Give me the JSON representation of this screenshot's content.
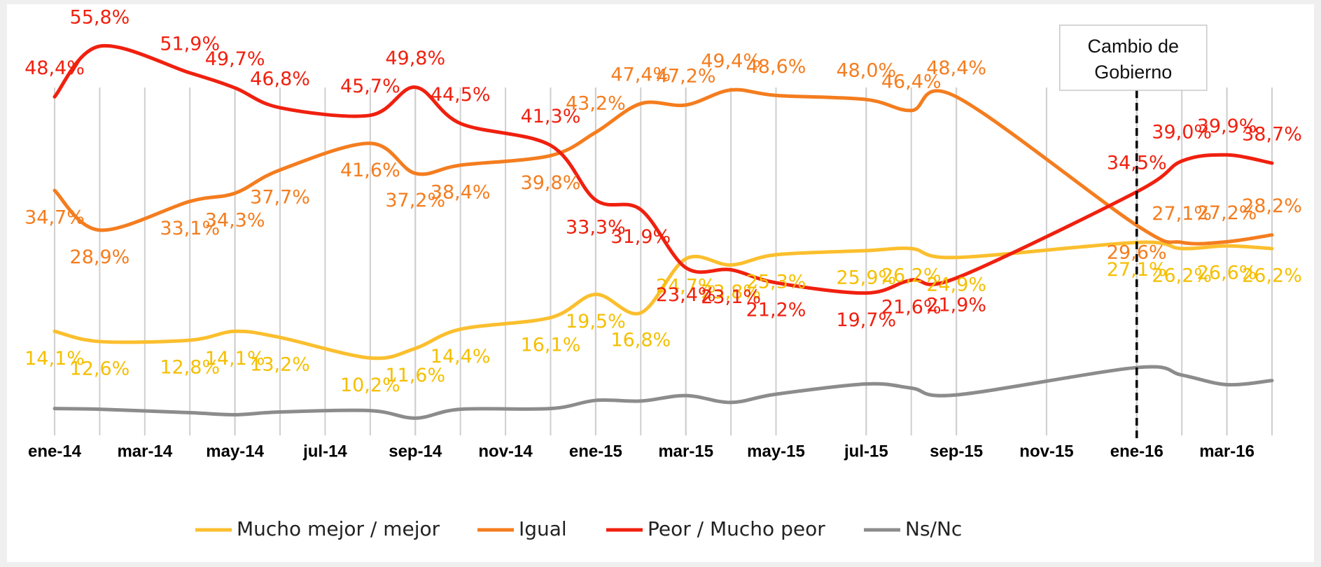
{
  "chart_data": {
    "type": "line",
    "xlim": [
      0,
      27
    ],
    "xticks": [
      {
        "value": 0,
        "label": "ene-14"
      },
      {
        "value": 2,
        "label": "mar-14"
      },
      {
        "value": 4,
        "label": "may-14"
      },
      {
        "value": 6,
        "label": "jul-14"
      },
      {
        "value": 8,
        "label": "sep-14"
      },
      {
        "value": 10,
        "label": "nov-14"
      },
      {
        "value": 12,
        "label": "ene-15"
      },
      {
        "value": 14,
        "label": "mar-15"
      },
      {
        "value": 16,
        "label": "may-15"
      },
      {
        "value": 18,
        "label": "jul-15"
      },
      {
        "value": 20,
        "label": "sep-15"
      },
      {
        "value": 22,
        "label": "nov-15"
      },
      {
        "value": 24,
        "label": "ene-16"
      },
      {
        "value": 26,
        "label": "mar-16"
      }
    ],
    "x": [
      0,
      1,
      3,
      4,
      5,
      7,
      8,
      9,
      11,
      12,
      13,
      14,
      15,
      16,
      18,
      19,
      20,
      24,
      25,
      26,
      27
    ],
    "ylim": [
      0,
      60
    ],
    "grid": true,
    "series": [
      {
        "name": "Mucho mejor / mejor",
        "color": "#fbbf2e",
        "label_color": "#f5bf00",
        "values": [
          14.1,
          12.6,
          12.8,
          14.1,
          13.2,
          10.2,
          11.6,
          14.4,
          16.1,
          19.5,
          16.8,
          24.7,
          23.8,
          25.3,
          25.9,
          26.2,
          24.9,
          27.1,
          26.2,
          26.6,
          26.2
        ],
        "value_labels": [
          "14,1%",
          "12,6%",
          "12,8%",
          "14,1%",
          "13,2%",
          "10,2%",
          "11,6%",
          "14,4%",
          "16,1%",
          "19,5%",
          "16,8%",
          "24,7%",
          "23,8%",
          "25,3%",
          "25,9%",
          "26,2%",
          "24,9%",
          "27,1%",
          "26,2%",
          "26,6%",
          "26,2%"
        ]
      },
      {
        "name": "Igual",
        "color": "#f47d1f",
        "label_color": "#f47d1f",
        "values": [
          34.7,
          28.9,
          33.1,
          34.3,
          37.7,
          41.6,
          37.2,
          38.4,
          39.8,
          43.2,
          47.4,
          47.2,
          49.4,
          48.6,
          48.0,
          46.4,
          48.4,
          29.6,
          27.1,
          27.2,
          28.2
        ],
        "value_labels": [
          "34,7%",
          "28,9%",
          "33,1%",
          "34,3%",
          "37,7%",
          "41,6%",
          "37,2%",
          "38,4%",
          "39,8%",
          "43,2%",
          "47,4%",
          "47,2%",
          "49,4%",
          "48,6%",
          "48,0%",
          "46,4%",
          "48,4%",
          "29,6%",
          "27,1%",
          "27,2%",
          "28,2%"
        ]
      },
      {
        "name": "Peor / Mucho peor",
        "color": "#f0200f",
        "label_color": "#f0200f",
        "values": [
          48.4,
          55.8,
          51.9,
          49.7,
          46.8,
          45.7,
          49.8,
          44.5,
          41.3,
          33.3,
          31.9,
          23.4,
          23.1,
          21.2,
          19.7,
          21.6,
          21.9,
          34.5,
          39.0,
          39.9,
          38.7
        ],
        "value_labels": [
          "48,4%",
          "55,8%",
          "51,9%",
          "49,7%",
          "46,8%",
          "45,7%",
          "49,8%",
          "44,5%",
          "41,3%",
          "33,3%",
          "31,9%",
          "23,4%",
          "23,1%",
          "21,2%",
          "19,7%",
          "21,6%",
          "21,9%",
          "34,5%",
          "39,0%",
          "39,9%",
          "38,7%"
        ]
      },
      {
        "name": "Ns/Nc",
        "color": "#8c8c8c",
        "values": [
          2.8,
          2.7,
          2.2,
          1.9,
          2.3,
          2.5,
          1.4,
          2.7,
          2.8,
          4.0,
          3.9,
          4.7,
          3.7,
          4.9,
          6.4,
          5.8,
          4.8,
          8.8,
          7.7,
          6.3,
          6.9
        ]
      }
    ],
    "annotation": {
      "text": [
        "Cambio de",
        "Gobierno"
      ],
      "x": 24
    }
  }
}
